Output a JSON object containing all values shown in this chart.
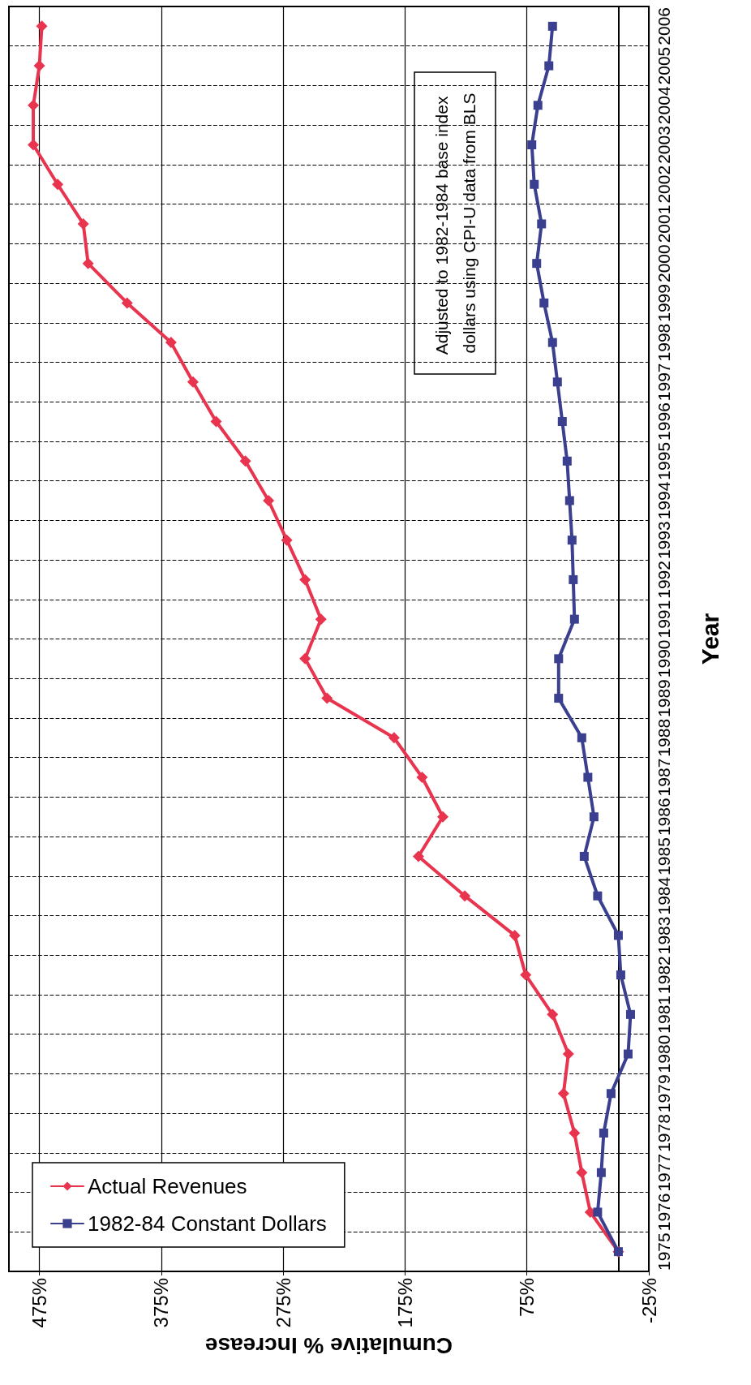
{
  "chart_data": {
    "type": "line",
    "orientation": "horizontal",
    "xlabel": "Cumulative % Increase",
    "ylabel": "Year",
    "categories": [
      "2006",
      "2005",
      "2004",
      "2003",
      "2002",
      "2001",
      "2000",
      "1999",
      "1998",
      "1997",
      "1996",
      "1995",
      "1994",
      "1993",
      "1992",
      "1991",
      "1990",
      "1989",
      "1988",
      "1987",
      "1986",
      "1985",
      "1984",
      "1983",
      "1982",
      "1981",
      "1980",
      "1979",
      "1978",
      "1977",
      "1976",
      "1975"
    ],
    "series": [
      {
        "name": "Actual Revenues",
        "color": "#e8344e",
        "marker": "diamond",
        "values": [
          473,
          475,
          480,
          480,
          460,
          439,
          435,
          403,
          367,
          349,
          330,
          306,
          287,
          272,
          257,
          244,
          257,
          239,
          184,
          161,
          144,
          164,
          126,
          85,
          76,
          54,
          41,
          45,
          36,
          30,
          23,
          0
        ]
      },
      {
        "name": "1982-84 Constant Dollars",
        "color": "#3a3f8f",
        "marker": "square",
        "values": [
          54,
          57,
          66,
          71,
          69,
          63,
          67,
          61,
          54,
          50,
          46,
          42,
          40,
          38,
          37,
          36,
          49,
          49,
          30,
          25,
          20,
          28,
          17,
          0,
          -2,
          -10,
          -8,
          6,
          12,
          14,
          17,
          0
        ]
      }
    ],
    "xlim": [
      500,
      -25
    ],
    "xticks": [
      {
        "value": 475,
        "label": "475%"
      },
      {
        "value": 375,
        "label": "375%"
      },
      {
        "value": 275,
        "label": "275%"
      },
      {
        "value": 175,
        "label": "175%"
      },
      {
        "value": 75,
        "label": "75%"
      },
      {
        "value": -25,
        "label": "-25%"
      }
    ],
    "grid": true,
    "legend": "bottom left",
    "annotations": [
      "Adjusted to 1982-1984 base index dollars using CPI-U data from BLS"
    ]
  }
}
